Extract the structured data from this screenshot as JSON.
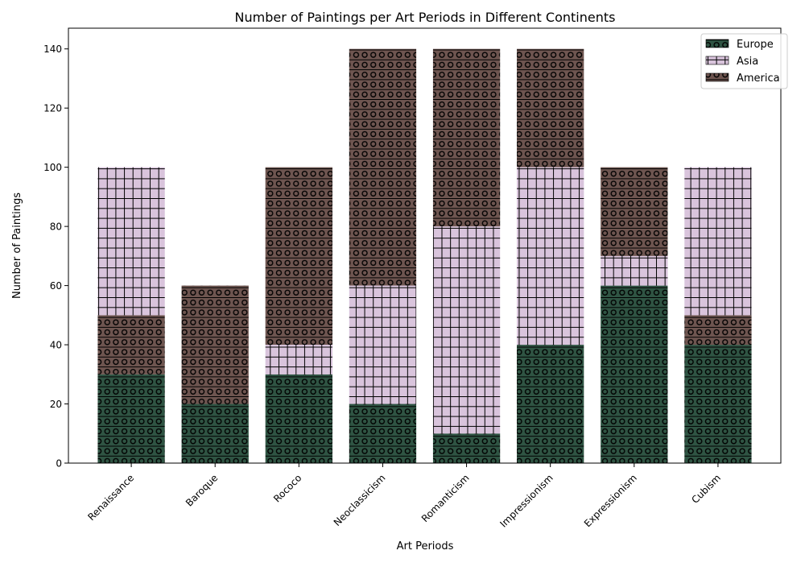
{
  "chart_data": {
    "type": "bar",
    "stacked": true,
    "title": "Number of Paintings per Art Periods in Different Continents",
    "xlabel": "Art Periods",
    "ylabel": "Number of Paintings",
    "categories": [
      "Renaissance",
      "Baroque",
      "Rococo",
      "Neoclassicism",
      "Romanticism",
      "Impressionism",
      "Expressionism",
      "Cubism"
    ],
    "ylim": [
      0,
      147
    ],
    "yticks": [
      0,
      20,
      40,
      60,
      80,
      100,
      120,
      140
    ],
    "legend_position": "top-right",
    "series": [
      {
        "name": "Europe",
        "color": "#2f5443",
        "pattern": "circles",
        "values": [
          30,
          20,
          30,
          20,
          10,
          40,
          60,
          40
        ]
      },
      {
        "name": "Asia",
        "color": "#d9c4dc",
        "pattern": "grid",
        "values": [
          50,
          0,
          10,
          40,
          70,
          60,
          10,
          50
        ]
      },
      {
        "name": "America",
        "color": "#6e5550",
        "pattern": "circles",
        "values": [
          20,
          40,
          60,
          80,
          60,
          40,
          30,
          10
        ]
      }
    ],
    "stack_order": [
      [
        "Europe",
        "America",
        "Asia"
      ],
      [
        "Europe",
        "Asia",
        "America"
      ],
      [
        "Europe",
        "Asia",
        "America"
      ],
      [
        "Europe",
        "Asia",
        "America"
      ],
      [
        "Europe",
        "Asia",
        "America"
      ],
      [
        "Europe",
        "Asia",
        "America"
      ],
      [
        "Europe",
        "Asia",
        "America"
      ],
      [
        "Europe",
        "America",
        "Asia"
      ]
    ]
  }
}
